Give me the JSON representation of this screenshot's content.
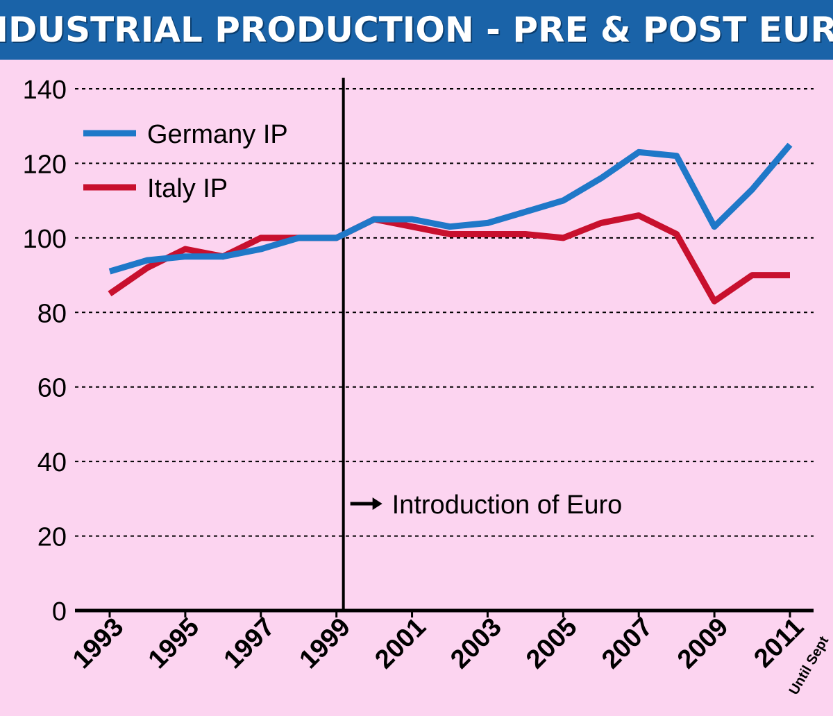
{
  "title": "INDUSTRIAL PRODUCTION - PRE & POST EURO",
  "colors": {
    "background": "#fcd4f0",
    "title_bar": "#1a63a8",
    "germany": "#1f78c8",
    "italy": "#c8102e"
  },
  "chart_data": {
    "type": "line",
    "title": "INDUSTRIAL PRODUCTION - PRE & POST EURO",
    "x": [
      1993,
      1994,
      1995,
      1996,
      1997,
      1998,
      1999,
      2000,
      2001,
      2002,
      2003,
      2004,
      2005,
      2006,
      2007,
      2008,
      2009,
      2010,
      2011
    ],
    "x_tick_labels": [
      "1993",
      "1995",
      "1997",
      "1999",
      "2001",
      "2003",
      "2005",
      "2007",
      "2009",
      "2011"
    ],
    "x_sub_label": "Until Sept",
    "series": [
      {
        "name": "Germany IP",
        "color": "#1f78c8",
        "values": [
          91,
          94,
          95,
          95,
          97,
          100,
          100,
          105,
          105,
          103,
          104,
          107,
          110,
          116,
          123,
          122,
          103,
          113,
          125
        ]
      },
      {
        "name": "Italy IP",
        "color": "#c8102e",
        "values": [
          85,
          92,
          97,
          95,
          100,
          100,
          100,
          105,
          103,
          101,
          101,
          101,
          100,
          104,
          106,
          101,
          83,
          90,
          90
        ]
      }
    ],
    "yticks": [
      0,
      20,
      40,
      60,
      80,
      100,
      120,
      140
    ],
    "ylim": [
      0,
      140
    ],
    "grid": true,
    "legend_position": "top-left",
    "annotation": {
      "x": 1999,
      "label": "Introduction of Euro"
    }
  }
}
